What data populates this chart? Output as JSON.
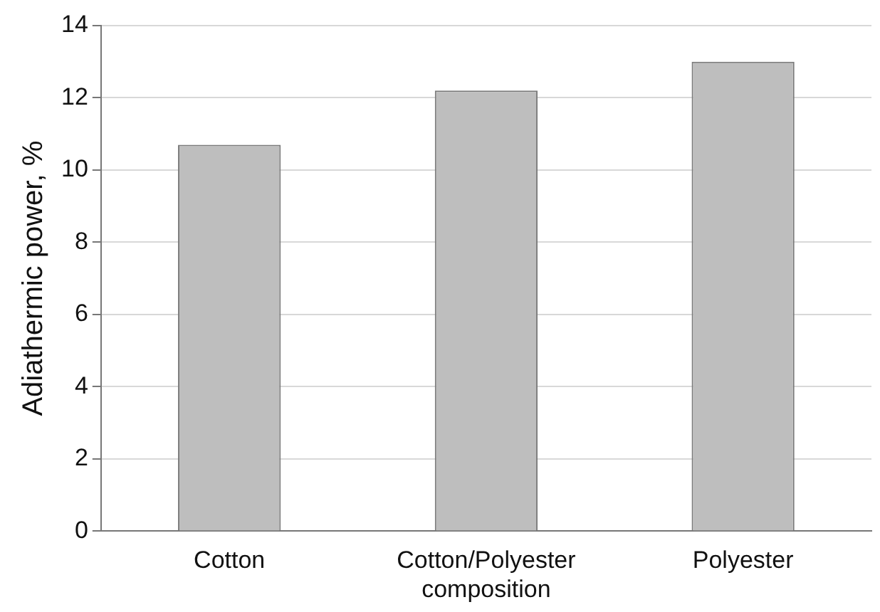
{
  "chart_data": {
    "type": "bar",
    "ylabel": "Adiathermic power, %",
    "categories": [
      "Cotton",
      "Cotton/Polyester\ncomposition",
      "Polyester"
    ],
    "values": [
      10.7,
      12.2,
      13.0
    ],
    "color": "#bebebe",
    "ylim": [
      0,
      14
    ],
    "yticks": [
      0,
      2,
      4,
      6,
      8,
      10,
      12,
      14
    ],
    "grid": "y",
    "legend": false
  }
}
